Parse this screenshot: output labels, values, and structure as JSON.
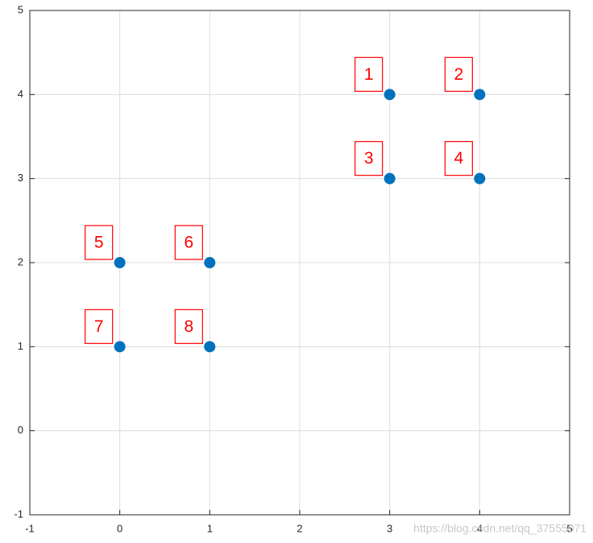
{
  "chart_data": {
    "type": "scatter",
    "x": [
      3,
      4,
      3,
      4,
      0,
      1,
      0,
      1
    ],
    "values": [
      4,
      4,
      3,
      3,
      2,
      2,
      1,
      1
    ],
    "point_labels": [
      "1",
      "2",
      "3",
      "4",
      "5",
      "6",
      "7",
      "8"
    ],
    "color": "#0072bd",
    "label_color": "#ff0000",
    "xlim": [
      -1,
      5
    ],
    "ylim": [
      -1,
      5
    ],
    "xticks": [
      -1,
      0,
      1,
      2,
      3,
      4,
      5
    ],
    "yticks": [
      -1,
      0,
      1,
      2,
      3,
      4,
      5
    ],
    "grid": true,
    "watermark": "https://blog.csdn.net/qq_37555071"
  }
}
